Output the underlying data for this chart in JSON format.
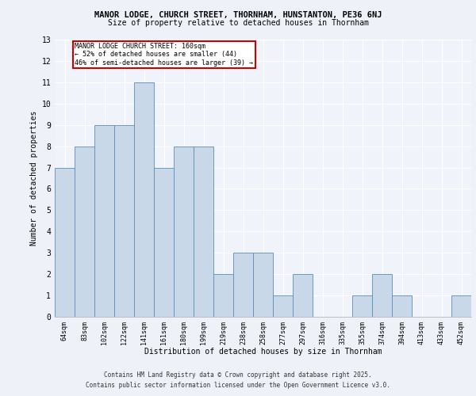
{
  "title1": "MANOR LODGE, CHURCH STREET, THORNHAM, HUNSTANTON, PE36 6NJ",
  "title2": "Size of property relative to detached houses in Thornham",
  "xlabel": "Distribution of detached houses by size in Thornham",
  "ylabel": "Number of detached properties",
  "categories": [
    "64sqm",
    "83sqm",
    "102sqm",
    "122sqm",
    "141sqm",
    "161sqm",
    "180sqm",
    "199sqm",
    "219sqm",
    "238sqm",
    "258sqm",
    "277sqm",
    "297sqm",
    "316sqm",
    "335sqm",
    "355sqm",
    "374sqm",
    "394sqm",
    "413sqm",
    "433sqm",
    "452sqm"
  ],
  "values": [
    7,
    8,
    9,
    9,
    11,
    7,
    8,
    8,
    2,
    3,
    3,
    1,
    2,
    0,
    0,
    1,
    2,
    1,
    0,
    0,
    1
  ],
  "bar_color": "#c8d8e8",
  "bar_edge_color": "#5b8db8",
  "annotation_text": "MANOR LODGE CHURCH STREET: 160sqm\n← 52% of detached houses are smaller (44)\n46% of semi-detached houses are larger (39) →",
  "annotation_box_color": "#ffffff",
  "annotation_box_edge_color": "#cc0000",
  "ylim": [
    0,
    13
  ],
  "yticks": [
    0,
    1,
    2,
    3,
    4,
    5,
    6,
    7,
    8,
    9,
    10,
    11,
    12,
    13
  ],
  "bg_color": "#eef2f8",
  "plot_bg_color": "#f0f4fa",
  "grid_color": "#ffffff",
  "footer1": "Contains HM Land Registry data © Crown copyright and database right 2025.",
  "footer2": "Contains public sector information licensed under the Open Government Licence v3.0."
}
